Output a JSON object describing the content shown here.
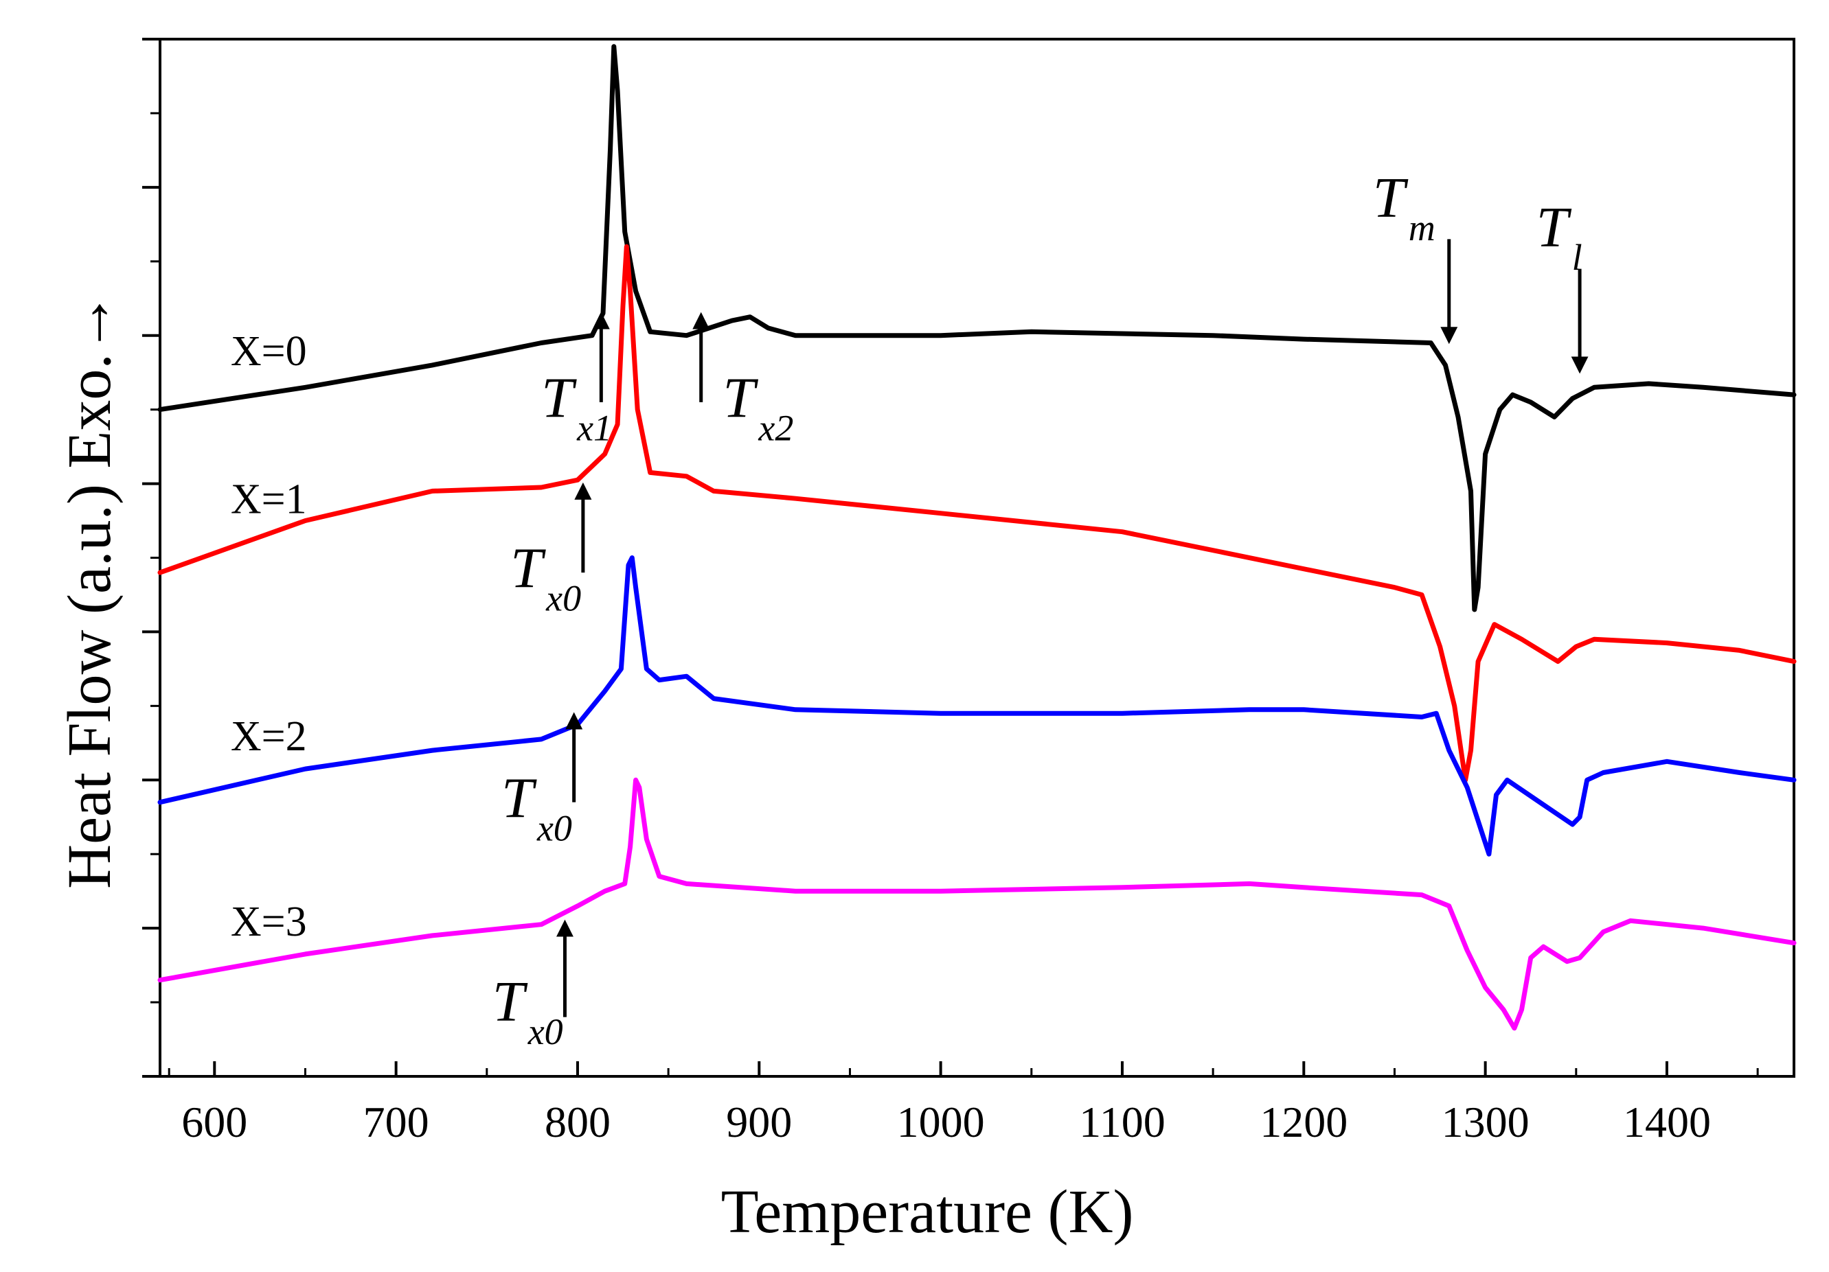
{
  "chart_data": {
    "type": "line",
    "title": "",
    "xlabel": "Temperature (K)",
    "ylabel": "Heat Flow (a.u.) Exo.→",
    "xlim": [
      570,
      1470
    ],
    "ylim": [
      0,
      14
    ],
    "xticks": [
      600,
      700,
      800,
      900,
      1000,
      1100,
      1200,
      1300,
      1400
    ],
    "yticks_unlabeled": 14,
    "grid": false,
    "legend": "none",
    "series": [
      {
        "name": "X=0",
        "color": "#000000",
        "points": [
          [
            570,
            9.0
          ],
          [
            650,
            9.3
          ],
          [
            720,
            9.6
          ],
          [
            780,
            9.9
          ],
          [
            808,
            10.0
          ],
          [
            814,
            10.3
          ],
          [
            818,
            12.5
          ],
          [
            820,
            13.9
          ],
          [
            822,
            13.3
          ],
          [
            826,
            11.4
          ],
          [
            832,
            10.6
          ],
          [
            840,
            10.05
          ],
          [
            860,
            10.0
          ],
          [
            885,
            10.2
          ],
          [
            895,
            10.25
          ],
          [
            905,
            10.1
          ],
          [
            920,
            10.0
          ],
          [
            1000,
            10.0
          ],
          [
            1050,
            10.05
          ],
          [
            1150,
            10.0
          ],
          [
            1200,
            9.95
          ],
          [
            1270,
            9.9
          ],
          [
            1278,
            9.6
          ],
          [
            1285,
            8.9
          ],
          [
            1292,
            7.9
          ],
          [
            1294,
            6.3
          ],
          [
            1296,
            6.6
          ],
          [
            1300,
            8.4
          ],
          [
            1308,
            9.0
          ],
          [
            1315,
            9.2
          ],
          [
            1325,
            9.1
          ],
          [
            1338,
            8.9
          ],
          [
            1348,
            9.15
          ],
          [
            1360,
            9.3
          ],
          [
            1390,
            9.35
          ],
          [
            1420,
            9.3
          ],
          [
            1470,
            9.2
          ]
        ],
        "label_text": "X=0",
        "label_pos": [
          590,
          9.6
        ]
      },
      {
        "name": "X=1",
        "color": "#ff0000",
        "points": [
          [
            570,
            6.8
          ],
          [
            650,
            7.5
          ],
          [
            720,
            7.9
          ],
          [
            780,
            7.95
          ],
          [
            800,
            8.05
          ],
          [
            815,
            8.4
          ],
          [
            822,
            8.8
          ],
          [
            825,
            10.4
          ],
          [
            827,
            11.2
          ],
          [
            829,
            10.6
          ],
          [
            833,
            9.0
          ],
          [
            840,
            8.15
          ],
          [
            860,
            8.1
          ],
          [
            875,
            7.9
          ],
          [
            920,
            7.8
          ],
          [
            1000,
            7.6
          ],
          [
            1100,
            7.35
          ],
          [
            1180,
            6.95
          ],
          [
            1250,
            6.6
          ],
          [
            1265,
            6.5
          ],
          [
            1275,
            5.8
          ],
          [
            1283,
            5.0
          ],
          [
            1289,
            4.0
          ],
          [
            1292,
            4.4
          ],
          [
            1296,
            5.6
          ],
          [
            1305,
            6.1
          ],
          [
            1320,
            5.9
          ],
          [
            1340,
            5.6
          ],
          [
            1350,
            5.8
          ],
          [
            1360,
            5.9
          ],
          [
            1400,
            5.85
          ],
          [
            1440,
            5.75
          ],
          [
            1470,
            5.6
          ]
        ],
        "label_text": "X=1",
        "label_pos": [
          590,
          7.6
        ]
      },
      {
        "name": "X=2",
        "color": "#0000ff",
        "points": [
          [
            570,
            3.7
          ],
          [
            650,
            4.15
          ],
          [
            720,
            4.4
          ],
          [
            780,
            4.55
          ],
          [
            800,
            4.75
          ],
          [
            815,
            5.2
          ],
          [
            824,
            5.5
          ],
          [
            828,
            6.9
          ],
          [
            830,
            7.0
          ],
          [
            832,
            6.6
          ],
          [
            838,
            5.5
          ],
          [
            845,
            5.35
          ],
          [
            860,
            5.4
          ],
          [
            875,
            5.1
          ],
          [
            920,
            4.95
          ],
          [
            1000,
            4.9
          ],
          [
            1100,
            4.9
          ],
          [
            1170,
            4.95
          ],
          [
            1200,
            4.95
          ],
          [
            1265,
            4.85
          ],
          [
            1273,
            4.9
          ],
          [
            1280,
            4.4
          ],
          [
            1290,
            3.9
          ],
          [
            1298,
            3.3
          ],
          [
            1302,
            3.0
          ],
          [
            1306,
            3.8
          ],
          [
            1312,
            4.0
          ],
          [
            1330,
            3.7
          ],
          [
            1348,
            3.4
          ],
          [
            1352,
            3.5
          ],
          [
            1356,
            4.0
          ],
          [
            1365,
            4.1
          ],
          [
            1400,
            4.25
          ],
          [
            1440,
            4.1
          ],
          [
            1470,
            4.0
          ]
        ],
        "label_text": "X=2",
        "label_pos": [
          590,
          4.4
        ]
      },
      {
        "name": "X=3",
        "color": "#ff00ff",
        "points": [
          [
            570,
            1.3
          ],
          [
            650,
            1.65
          ],
          [
            720,
            1.9
          ],
          [
            780,
            2.05
          ],
          [
            800,
            2.3
          ],
          [
            815,
            2.5
          ],
          [
            826,
            2.6
          ],
          [
            829,
            3.1
          ],
          [
            832,
            4.0
          ],
          [
            834,
            3.9
          ],
          [
            838,
            3.2
          ],
          [
            845,
            2.7
          ],
          [
            860,
            2.6
          ],
          [
            920,
            2.5
          ],
          [
            1000,
            2.5
          ],
          [
            1100,
            2.55
          ],
          [
            1170,
            2.6
          ],
          [
            1200,
            2.55
          ],
          [
            1265,
            2.45
          ],
          [
            1280,
            2.3
          ],
          [
            1290,
            1.7
          ],
          [
            1300,
            1.2
          ],
          [
            1310,
            0.9
          ],
          [
            1316,
            0.65
          ],
          [
            1320,
            0.9
          ],
          [
            1325,
            1.6
          ],
          [
            1332,
            1.75
          ],
          [
            1345,
            1.55
          ],
          [
            1352,
            1.6
          ],
          [
            1365,
            1.95
          ],
          [
            1380,
            2.1
          ],
          [
            1420,
            2.0
          ],
          [
            1470,
            1.8
          ]
        ],
        "label_text": "X=3",
        "label_pos": [
          590,
          1.9
        ]
      }
    ],
    "annotations": [
      {
        "main": "T",
        "sub": "x1",
        "arrow": "up",
        "arrow_x": 813,
        "arrow_y": [
          9.1,
          10.2
        ],
        "text_pos": [
          780,
          8.9
        ]
      },
      {
        "main": "T",
        "sub": "x2",
        "arrow": "up",
        "arrow_x": 868,
        "arrow_y": [
          9.1,
          10.2
        ],
        "text_pos": [
          880,
          8.9
        ]
      },
      {
        "main": "T",
        "sub": "x0",
        "arrow": "up",
        "arrow_x": 803,
        "arrow_y": [
          6.8,
          7.9
        ],
        "text_pos": [
          763,
          6.6
        ]
      },
      {
        "main": "T",
        "sub": "x0",
        "arrow": "up",
        "arrow_x": 798,
        "arrow_y": [
          3.7,
          4.8
        ],
        "text_pos": [
          758,
          3.5
        ]
      },
      {
        "main": "T",
        "sub": "x0",
        "arrow": "up",
        "arrow_x": 793,
        "arrow_y": [
          0.8,
          2.0
        ],
        "text_pos": [
          753,
          0.75
        ]
      },
      {
        "main": "T",
        "sub": "m",
        "arrow": "down",
        "arrow_x": 1280,
        "arrow_y": [
          11.3,
          10.0
        ],
        "text_pos": [
          1238,
          11.6
        ]
      },
      {
        "main": "T",
        "sub": "l",
        "arrow": "down",
        "arrow_x": 1352,
        "arrow_y": [
          10.9,
          9.6
        ],
        "text_pos": [
          1328,
          11.2
        ]
      }
    ]
  }
}
